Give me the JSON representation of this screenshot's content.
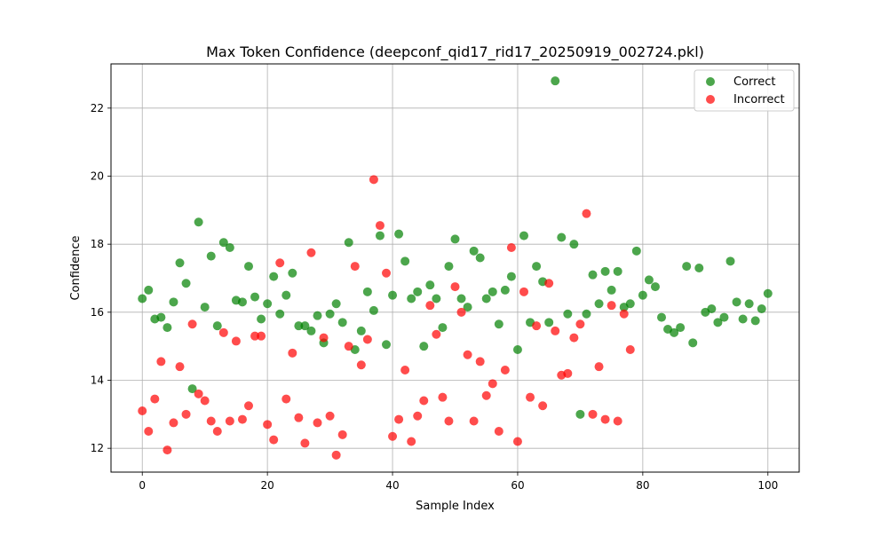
{
  "chart_data": {
    "type": "scatter",
    "title": "Max Token Confidence (deepconf_qid17_rid17_20250919_002724.pkl)",
    "xlabel": "Sample Index",
    "ylabel": "Confidence",
    "xlim": [
      -5,
      105
    ],
    "ylim": [
      11.3,
      23.3
    ],
    "xticks": [
      0,
      20,
      40,
      60,
      80,
      100
    ],
    "yticks": [
      12,
      14,
      16,
      18,
      20,
      22
    ],
    "grid": true,
    "legend_position": "top-right",
    "series": [
      {
        "name": "Correct",
        "color": "#008000",
        "points": [
          [
            0,
            16.4
          ],
          [
            1,
            16.65
          ],
          [
            2,
            15.8
          ],
          [
            3,
            15.85
          ],
          [
            4,
            15.55
          ],
          [
            5,
            16.3
          ],
          [
            6,
            17.45
          ],
          [
            7,
            16.85
          ],
          [
            8,
            13.75
          ],
          [
            9,
            18.65
          ],
          [
            10,
            16.15
          ],
          [
            11,
            17.65
          ],
          [
            12,
            15.6
          ],
          [
            13,
            18.05
          ],
          [
            14,
            17.9
          ],
          [
            15,
            16.35
          ],
          [
            16,
            16.3
          ],
          [
            17,
            17.35
          ],
          [
            18,
            16.45
          ],
          [
            19,
            15.8
          ],
          [
            20,
            16.25
          ],
          [
            21,
            17.05
          ],
          [
            22,
            15.95
          ],
          [
            23,
            16.5
          ],
          [
            24,
            17.15
          ],
          [
            25,
            15.6
          ],
          [
            26,
            15.6
          ],
          [
            27,
            15.45
          ],
          [
            28,
            15.9
          ],
          [
            29,
            15.1
          ],
          [
            30,
            15.95
          ],
          [
            31,
            16.25
          ],
          [
            32,
            15.7
          ],
          [
            33,
            18.05
          ],
          [
            34,
            14.9
          ],
          [
            35,
            15.45
          ],
          [
            36,
            16.6
          ],
          [
            37,
            16.05
          ],
          [
            38,
            18.25
          ],
          [
            39,
            15.05
          ],
          [
            40,
            16.5
          ],
          [
            41,
            18.3
          ],
          [
            42,
            17.5
          ],
          [
            43,
            16.4
          ],
          [
            44,
            16.6
          ],
          [
            45,
            15.0
          ],
          [
            46,
            16.8
          ],
          [
            47,
            16.4
          ],
          [
            48,
            15.55
          ],
          [
            49,
            17.35
          ],
          [
            50,
            18.15
          ],
          [
            51,
            16.4
          ],
          [
            52,
            16.15
          ],
          [
            53,
            17.8
          ],
          [
            54,
            17.6
          ],
          [
            55,
            16.4
          ],
          [
            56,
            16.6
          ],
          [
            57,
            15.65
          ],
          [
            58,
            16.65
          ],
          [
            59,
            17.05
          ],
          [
            60,
            14.9
          ],
          [
            61,
            18.25
          ],
          [
            62,
            15.7
          ],
          [
            63,
            17.35
          ],
          [
            64,
            16.9
          ],
          [
            65,
            15.7
          ],
          [
            66,
            22.8
          ],
          [
            67,
            18.2
          ],
          [
            68,
            15.95
          ],
          [
            69,
            18.0
          ],
          [
            70,
            13.0
          ],
          [
            71,
            15.95
          ],
          [
            72,
            17.1
          ],
          [
            73,
            16.25
          ],
          [
            74,
            17.2
          ],
          [
            75,
            16.65
          ],
          [
            76,
            17.2
          ],
          [
            77,
            16.15
          ],
          [
            78,
            16.25
          ],
          [
            79,
            17.8
          ],
          [
            80,
            16.5
          ],
          [
            81,
            16.95
          ],
          [
            82,
            16.75
          ],
          [
            83,
            15.85
          ],
          [
            84,
            15.5
          ],
          [
            85,
            15.4
          ],
          [
            86,
            15.55
          ],
          [
            87,
            17.35
          ],
          [
            88,
            15.1
          ],
          [
            89,
            17.3
          ],
          [
            90,
            16.0
          ],
          [
            91,
            16.1
          ],
          [
            92,
            15.7
          ],
          [
            93,
            15.85
          ],
          [
            94,
            17.5
          ],
          [
            95,
            16.3
          ],
          [
            96,
            15.8
          ],
          [
            97,
            16.25
          ],
          [
            98,
            15.75
          ],
          [
            99,
            16.1
          ],
          [
            100,
            16.55
          ]
        ]
      },
      {
        "name": "Incorrect",
        "color": "#ff0000",
        "points": [
          [
            0,
            13.1
          ],
          [
            1,
            12.5
          ],
          [
            2,
            13.45
          ],
          [
            3,
            14.55
          ],
          [
            4,
            11.95
          ],
          [
            5,
            12.75
          ],
          [
            6,
            14.4
          ],
          [
            7,
            13.0
          ],
          [
            8,
            15.65
          ],
          [
            9,
            13.6
          ],
          [
            10,
            13.4
          ],
          [
            11,
            12.8
          ],
          [
            12,
            12.5
          ],
          [
            13,
            15.4
          ],
          [
            14,
            12.8
          ],
          [
            15,
            15.15
          ],
          [
            16,
            12.85
          ],
          [
            17,
            13.25
          ],
          [
            18,
            15.3
          ],
          [
            19,
            15.3
          ],
          [
            20,
            12.7
          ],
          [
            21,
            12.25
          ],
          [
            22,
            17.45
          ],
          [
            23,
            13.45
          ],
          [
            24,
            14.8
          ],
          [
            25,
            12.9
          ],
          [
            26,
            12.15
          ],
          [
            27,
            17.75
          ],
          [
            28,
            12.75
          ],
          [
            29,
            15.25
          ],
          [
            30,
            12.95
          ],
          [
            31,
            11.8
          ],
          [
            32,
            12.4
          ],
          [
            33,
            15.0
          ],
          [
            34,
            17.35
          ],
          [
            35,
            14.45
          ],
          [
            36,
            15.2
          ],
          [
            37,
            19.9
          ],
          [
            38,
            18.55
          ],
          [
            39,
            17.15
          ],
          [
            40,
            12.35
          ],
          [
            41,
            12.85
          ],
          [
            42,
            14.3
          ],
          [
            43,
            12.2
          ],
          [
            44,
            12.95
          ],
          [
            45,
            13.4
          ],
          [
            46,
            16.2
          ],
          [
            47,
            15.35
          ],
          [
            48,
            13.5
          ],
          [
            49,
            12.8
          ],
          [
            50,
            16.75
          ],
          [
            51,
            16.0
          ],
          [
            52,
            14.75
          ],
          [
            53,
            12.8
          ],
          [
            54,
            14.55
          ],
          [
            55,
            13.55
          ],
          [
            56,
            13.9
          ],
          [
            57,
            12.5
          ],
          [
            58,
            14.3
          ],
          [
            59,
            17.9
          ],
          [
            60,
            12.2
          ],
          [
            61,
            16.6
          ],
          [
            62,
            13.5
          ],
          [
            63,
            15.6
          ],
          [
            64,
            13.25
          ],
          [
            65,
            16.85
          ],
          [
            66,
            15.45
          ],
          [
            67,
            14.15
          ],
          [
            68,
            14.2
          ],
          [
            69,
            15.25
          ],
          [
            70,
            15.65
          ],
          [
            71,
            18.9
          ],
          [
            72,
            13.0
          ],
          [
            73,
            14.4
          ],
          [
            74,
            12.85
          ],
          [
            75,
            16.2
          ],
          [
            76,
            12.8
          ],
          [
            77,
            15.95
          ],
          [
            78,
            14.9
          ]
        ]
      }
    ]
  }
}
